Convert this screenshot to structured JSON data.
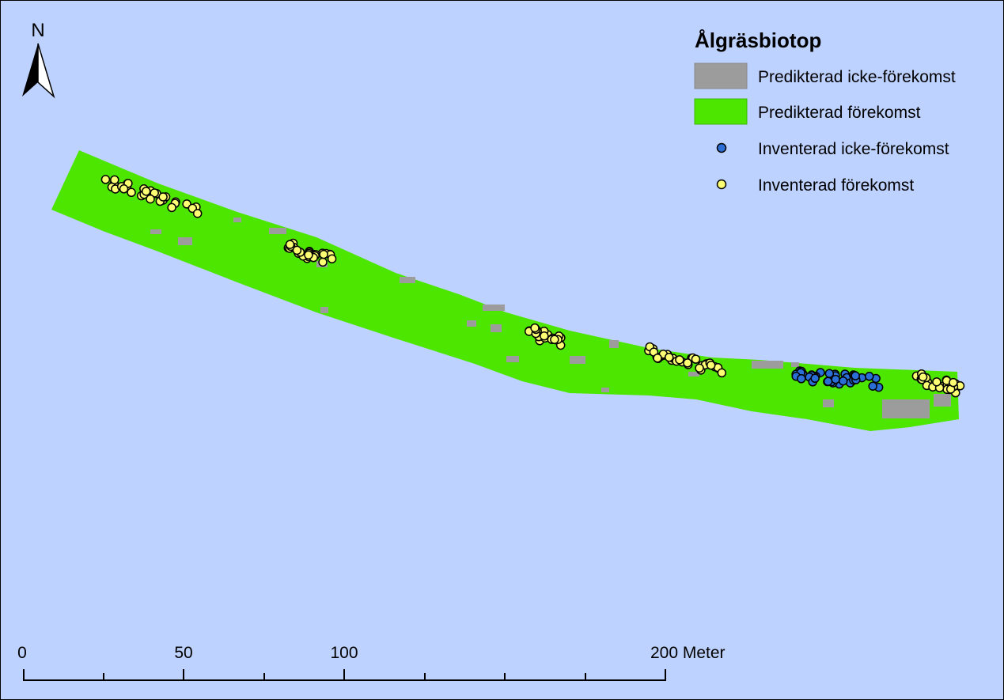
{
  "north_arrow": {
    "label": "N"
  },
  "legend": {
    "title": "Ålgräsbiotop",
    "items": [
      "Predikterad icke-förekomst",
      "Predikterad förekomst",
      "Inventerad icke-förekomst",
      "Inventerad förekomst"
    ]
  },
  "scale_bar": {
    "labels": [
      "0",
      "50",
      "100",
      "200 Meter"
    ]
  }
}
